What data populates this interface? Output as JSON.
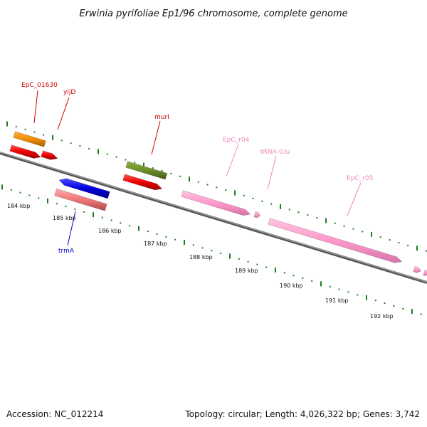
{
  "title": "Erwinia pyrifoliae Ep1/96 chromosome, complete genome",
  "accession": "Accession: NC_012214",
  "summary": "Topology: circular; Length: 4,026,322 bp; Genes: 3,742",
  "ticks": [
    "184 kbp",
    "185 kbp",
    "186 kbp",
    "187 kbp",
    "188 kbp",
    "189 kbp",
    "190 kbp",
    "191 kbp",
    "192 kbp"
  ],
  "labels": {
    "epc_01630": "EpC_01630",
    "yijd": "yijD",
    "muri": "murI",
    "epc_r04": "EpC_r04",
    "trna_glu": "tRNA-Glu",
    "epc_r05": "EpC_r05",
    "trma": "trmA"
  },
  "colors": {
    "backbone": "#777777",
    "dots": "#1e7d1e",
    "cds_red": "#ee0000",
    "orange": "#f08a00",
    "olive": "#6b8e23",
    "pink": "#ff99cc",
    "blue": "#0000dd",
    "salmon": "#ee7777",
    "label_red": "#cc0000",
    "label_pink": "#ee88bb",
    "label_blue": "#0000cc"
  }
}
